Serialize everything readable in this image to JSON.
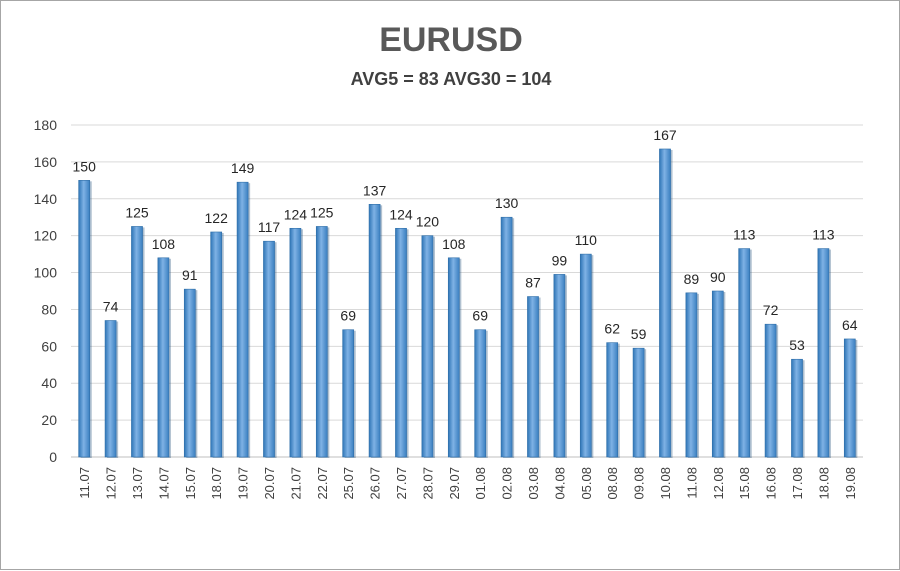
{
  "chart_data": {
    "type": "bar",
    "title": "EURUSD",
    "subtitle": "AVG5 = 83 AVG30 = 104",
    "xlabel": "",
    "ylabel": "",
    "ylim": [
      0,
      180
    ],
    "yticks": [
      0,
      20,
      40,
      60,
      80,
      100,
      120,
      140,
      160,
      180
    ],
    "grid": true,
    "legend": "none",
    "bar_color": "#5b9bd5",
    "categories": [
      "11.07",
      "12.07",
      "13.07",
      "14.07",
      "15.07",
      "18.07",
      "19.07",
      "20.07",
      "21.07",
      "22.07",
      "25.07",
      "26.07",
      "27.07",
      "28.07",
      "29.07",
      "01.08",
      "02.08",
      "03.08",
      "04.08",
      "05.08",
      "08.08",
      "09.08",
      "10.08",
      "11.08",
      "12.08",
      "15.08",
      "16.08",
      "17.08",
      "18.08",
      "19.08"
    ],
    "values": [
      150,
      74,
      125,
      108,
      91,
      122,
      149,
      117,
      124,
      125,
      69,
      137,
      124,
      120,
      108,
      69,
      130,
      87,
      99,
      110,
      62,
      59,
      167,
      89,
      90,
      113,
      72,
      53,
      113,
      64
    ]
  }
}
